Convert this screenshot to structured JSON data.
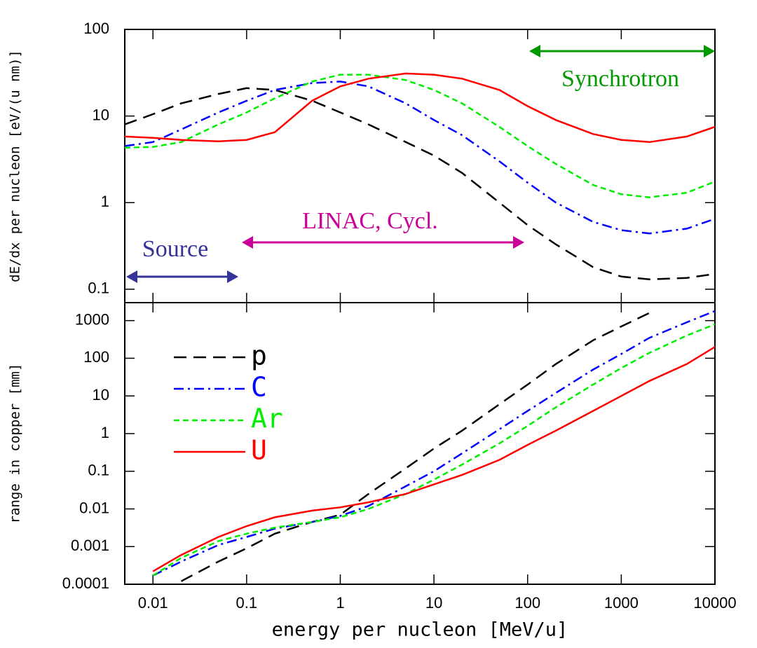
{
  "chart_data": [
    {
      "type": "line",
      "log_x": true,
      "log_y": true,
      "ylabel": "dE/dx per nucleon [eV/(u nm)]",
      "x": [
        0.005,
        0.01,
        0.02,
        0.05,
        0.1,
        0.2,
        0.5,
        1,
        2,
        5,
        10,
        20,
        50,
        100,
        200,
        500,
        1000,
        2000,
        5000,
        10000
      ],
      "series": [
        {
          "color": "#000000",
          "dash": "18,10",
          "values": [
            8,
            10.5,
            14,
            18,
            21,
            20,
            15,
            11,
            8,
            5,
            3.5,
            2.2,
            1,
            0.55,
            0.33,
            0.18,
            0.14,
            0.13,
            0.135,
            0.15
          ]
        },
        {
          "color": "#0000ff",
          "dash": "14,6,3,6",
          "values": [
            4.5,
            5,
            7,
            11,
            15,
            20,
            24,
            25,
            22,
            14,
            9,
            6,
            3,
            1.7,
            1,
            0.6,
            0.48,
            0.44,
            0.5,
            0.65
          ]
        },
        {
          "color": "#00ee00",
          "dash": "8,5",
          "values": [
            4.3,
            4.4,
            5,
            8,
            11,
            16,
            25,
            30,
            30,
            26,
            20,
            14,
            7.5,
            4.5,
            2.8,
            1.6,
            1.25,
            1.15,
            1.3,
            1.75
          ]
        },
        {
          "color": "#ff0000",
          "dash": "none",
          "values": [
            5.8,
            5.6,
            5.3,
            5.1,
            5.3,
            6.5,
            15,
            22,
            27,
            31,
            30,
            27,
            20,
            13,
            9,
            6.2,
            5.3,
            5,
            5.8,
            7.5
          ]
        }
      ],
      "annotations": [
        {
          "text": "Synchrotron",
          "color": "#009900"
        },
        {
          "text": "LINAC, Cycl.",
          "color": "#cc0099"
        },
        {
          "text": "Source",
          "color": "#333399"
        }
      ],
      "xlim": [
        0.005,
        10000
      ],
      "ylim": [
        0.07,
        100
      ],
      "xticks": [
        0.01,
        0.1,
        1,
        10,
        100,
        1000,
        10000
      ],
      "yticks": [
        0.1,
        1,
        10,
        100
      ]
    },
    {
      "type": "line",
      "log_x": true,
      "log_y": true,
      "xlabel": "energy per nucleon [MeV/u]",
      "ylabel": "range in copper [mm]",
      "legend": "upper left",
      "x": [
        0.005,
        0.01,
        0.02,
        0.05,
        0.1,
        0.2,
        0.5,
        1,
        2,
        5,
        10,
        20,
        50,
        100,
        200,
        500,
        1000,
        2000,
        5000,
        10000
      ],
      "series": [
        {
          "name": "p",
          "color": "#000000",
          "dash": "18,10",
          "values": [
            null,
            null,
            0.00012,
            0.0004,
            0.0009,
            0.0022,
            0.0045,
            0.007,
            0.025,
            0.12,
            0.4,
            1.2,
            6,
            20,
            70,
            300,
            700,
            1600,
            null,
            null
          ]
        },
        {
          "name": "C",
          "color": "#0000ff",
          "dash": "14,6,3,6",
          "values": [
            null,
            0.00017,
            0.0004,
            0.0011,
            0.0018,
            0.003,
            0.0045,
            0.0065,
            0.012,
            0.04,
            0.1,
            0.3,
            1.3,
            4,
            12,
            50,
            130,
            350,
            900,
            1800
          ]
        },
        {
          "name": "Ar",
          "color": "#00ee00",
          "dash": "8,5",
          "values": [
            null,
            0.00017,
            0.0005,
            0.0014,
            0.0022,
            0.0032,
            0.0045,
            0.006,
            0.01,
            0.025,
            0.06,
            0.15,
            0.55,
            1.6,
            5,
            20,
            55,
            140,
            400,
            800
          ]
        },
        {
          "name": "U",
          "color": "#ff0000",
          "dash": "none",
          "values": [
            null,
            0.00022,
            0.0006,
            0.0018,
            0.0035,
            0.006,
            0.009,
            0.011,
            0.015,
            0.025,
            0.045,
            0.08,
            0.2,
            0.5,
            1.2,
            4,
            10,
            25,
            70,
            200
          ]
        }
      ],
      "xlim": [
        0.005,
        10000
      ],
      "ylim": [
        0.0001,
        3000
      ],
      "xticks": [
        0.01,
        0.1,
        1,
        10,
        100,
        1000,
        10000
      ],
      "yticks": [
        0.0001,
        0.001,
        0.01,
        0.1,
        1,
        10,
        100,
        1000
      ]
    }
  ]
}
